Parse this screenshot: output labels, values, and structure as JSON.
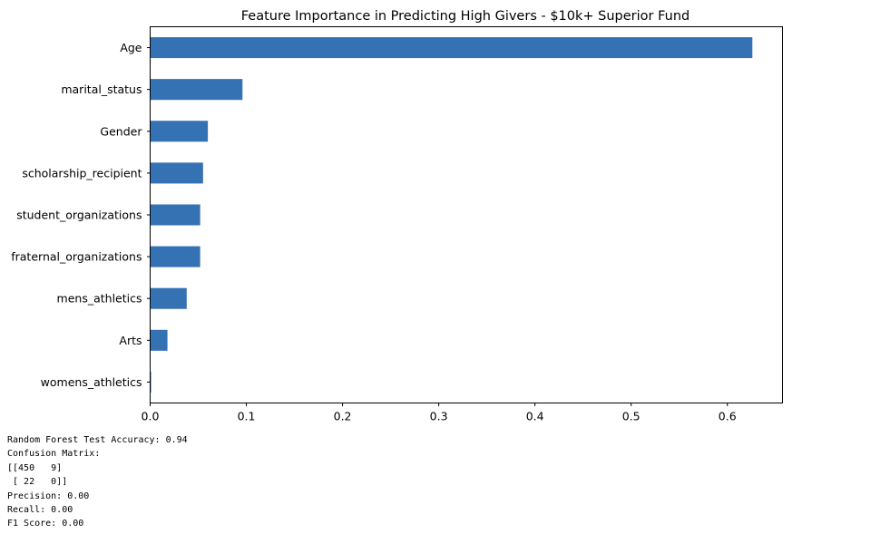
{
  "chart_data": {
    "type": "bar",
    "orientation": "horizontal",
    "title": "Feature Importance in Predicting High Givers - $10k+ Superior Fund",
    "xlabel": "",
    "ylabel": "",
    "categories": [
      "Age",
      "marital_status",
      "Gender",
      "scholarship_recipient",
      "student_organizations",
      "fraternal_organizations",
      "mens_athletics",
      "Arts",
      "womens_athletics"
    ],
    "values": [
      0.626,
      0.096,
      0.06,
      0.055,
      0.052,
      0.052,
      0.038,
      0.018,
      0.001
    ],
    "xlim": [
      0.0,
      0.6573
    ],
    "xticks": [
      "0.0",
      "0.1",
      "0.2",
      "0.3",
      "0.4",
      "0.5",
      "0.6"
    ],
    "bar_color": "#3572b4",
    "grid": false,
    "legend": "none"
  },
  "output": {
    "lines": [
      "Random Forest Test Accuracy: 0.94",
      "Confusion Matrix:",
      "[[450   9]",
      " [ 22   0]]",
      "Precision: 0.00",
      "Recall: 0.00",
      "F1 Score: 0.00"
    ]
  }
}
